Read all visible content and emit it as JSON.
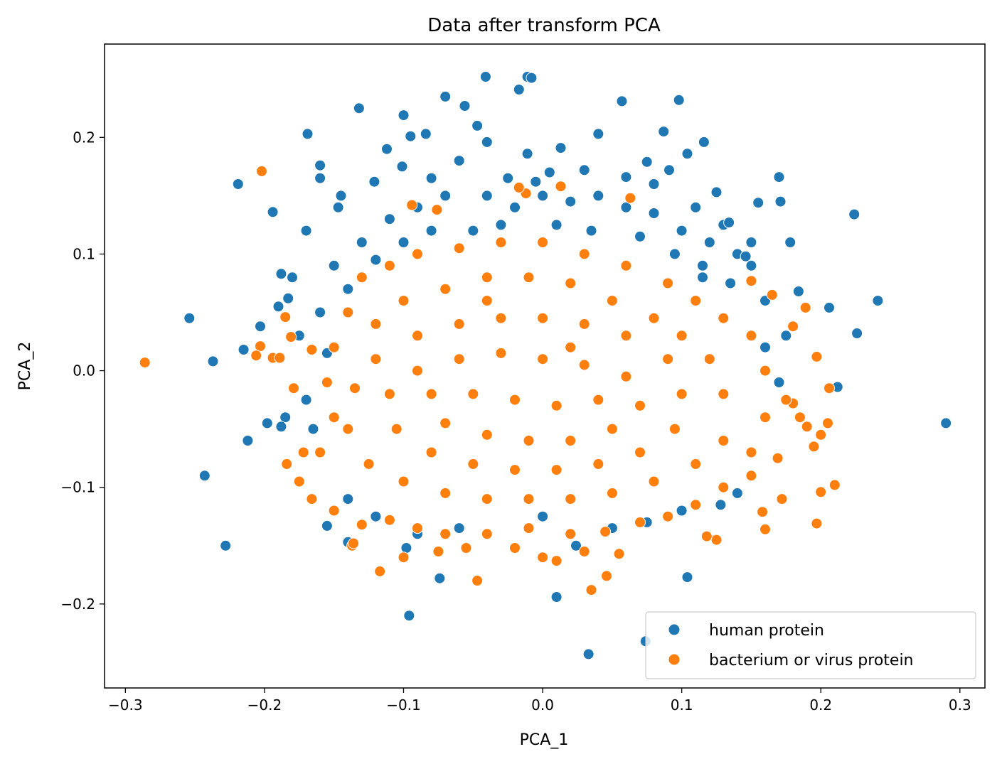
{
  "chart_data": {
    "type": "scatter",
    "title": "Data after transform PCA",
    "xlabel": "PCA_1",
    "ylabel": "PCA_2",
    "xlim": [
      -0.315,
      0.318
    ],
    "ylim": [
      -0.272,
      0.28
    ],
    "xticks": [
      -0.3,
      -0.2,
      -0.1,
      0.0,
      0.1,
      0.2,
      0.3
    ],
    "yticks": [
      -0.2,
      -0.1,
      0.0,
      0.1,
      0.2
    ],
    "xtick_labels": [
      "−0.3",
      "−0.2",
      "−0.1",
      "0.0",
      "0.1",
      "0.2",
      "0.3"
    ],
    "ytick_labels": [
      "−0.2",
      "−0.1",
      "0.0",
      "0.1",
      "0.2"
    ],
    "grid": false,
    "legend_position": "bottom-right",
    "series": [
      {
        "name": "human protein",
        "color": "#1f77b4",
        "note_points": "representative sample of the dense cloud plus visible outliers",
        "points": [
          [
            -0.041,
            0.252
          ],
          [
            -0.011,
            0.252
          ],
          [
            -0.008,
            0.251
          ],
          [
            -0.017,
            0.241
          ],
          [
            -0.07,
            0.235
          ],
          [
            0.098,
            0.232
          ],
          [
            0.057,
            0.231
          ],
          [
            -0.056,
            0.227
          ],
          [
            -0.132,
            0.225
          ],
          [
            -0.1,
            0.219
          ],
          [
            -0.047,
            0.21
          ],
          [
            0.087,
            0.205
          ],
          [
            -0.095,
            0.201
          ],
          [
            -0.084,
            0.203
          ],
          [
            -0.169,
            0.203
          ],
          [
            0.04,
            0.203
          ],
          [
            0.116,
            0.196
          ],
          [
            -0.04,
            0.196
          ],
          [
            0.104,
            0.186
          ],
          [
            -0.011,
            0.186
          ],
          [
            0.013,
            0.191
          ],
          [
            -0.112,
            0.19
          ],
          [
            -0.219,
            0.16
          ],
          [
            -0.194,
            0.136
          ],
          [
            0.224,
            0.134
          ],
          [
            0.241,
            0.06
          ],
          [
            0.226,
            0.032
          ],
          [
            -0.254,
            0.045
          ],
          [
            -0.237,
            0.008
          ],
          [
            0.29,
            -0.045
          ],
          [
            -0.243,
            -0.09
          ],
          [
            -0.228,
            -0.15
          ],
          [
            -0.096,
            -0.21
          ],
          [
            0.104,
            -0.177
          ],
          [
            0.01,
            -0.194
          ],
          [
            -0.074,
            -0.178
          ],
          [
            0.033,
            -0.243
          ],
          [
            0.074,
            -0.232
          ],
          [
            0.212,
            -0.014
          ],
          [
            0.178,
            0.11
          ],
          [
            -0.212,
            -0.06
          ],
          [
            -0.203,
            0.038
          ],
          [
            -0.155,
            -0.133
          ],
          [
            -0.14,
            -0.147
          ],
          [
            -0.098,
            -0.152
          ],
          [
            0.024,
            -0.15
          ],
          [
            0.128,
            -0.115
          ],
          [
            0.14,
            -0.105
          ],
          [
            0.17,
            0.166
          ],
          [
            0.155,
            0.144
          ],
          [
            -0.16,
            0.176
          ],
          [
            -0.147,
            0.14
          ],
          [
            -0.121,
            0.162
          ],
          [
            -0.06,
            0.18
          ],
          [
            0.005,
            0.17
          ],
          [
            0.03,
            0.172
          ],
          [
            0.06,
            0.166
          ],
          [
            0.08,
            0.16
          ],
          [
            0.11,
            0.14
          ],
          [
            0.13,
            0.125
          ],
          [
            -0.17,
            0.12
          ],
          [
            -0.18,
            0.08
          ],
          [
            -0.19,
            0.055
          ],
          [
            -0.175,
            0.03
          ],
          [
            -0.185,
            -0.04
          ],
          [
            -0.17,
            -0.025
          ],
          [
            0.15,
            0.09
          ],
          [
            0.16,
            0.06
          ],
          [
            0.175,
            0.03
          ],
          [
            0.15,
            0.11
          ],
          [
            -0.13,
            0.11
          ],
          [
            -0.11,
            0.13
          ],
          [
            -0.09,
            0.14
          ],
          [
            -0.07,
            0.15
          ],
          [
            -0.04,
            0.15
          ],
          [
            -0.02,
            0.14
          ],
          [
            0.0,
            0.15
          ],
          [
            0.02,
            0.145
          ],
          [
            0.04,
            0.15
          ],
          [
            0.06,
            0.14
          ],
          [
            0.08,
            0.135
          ],
          [
            0.1,
            0.12
          ],
          [
            0.12,
            0.11
          ],
          [
            0.14,
            0.1
          ],
          [
            -0.15,
            0.09
          ],
          [
            -0.14,
            0.07
          ],
          [
            -0.12,
            0.095
          ],
          [
            -0.1,
            0.11
          ],
          [
            -0.08,
            0.12
          ],
          [
            -0.05,
            0.12
          ],
          [
            -0.03,
            0.125
          ],
          [
            0.01,
            0.125
          ],
          [
            0.035,
            0.12
          ],
          [
            0.07,
            0.115
          ],
          [
            0.095,
            0.1
          ],
          [
            0.115,
            0.09
          ],
          [
            0.135,
            0.075
          ],
          [
            -0.16,
            0.05
          ],
          [
            -0.155,
            0.015
          ],
          [
            -0.165,
            -0.05
          ],
          [
            0.16,
            0.02
          ],
          [
            0.17,
            -0.01
          ],
          [
            -0.14,
            -0.11
          ],
          [
            -0.09,
            -0.14
          ],
          [
            0.0,
            -0.125
          ],
          [
            0.05,
            -0.135
          ],
          [
            0.1,
            -0.12
          ],
          [
            -0.12,
            -0.125
          ],
          [
            0.075,
            -0.13
          ],
          [
            -0.06,
            -0.135
          ],
          [
            -0.188,
            0.083
          ],
          [
            -0.183,
            0.062
          ],
          [
            -0.198,
            -0.045
          ],
          [
            -0.188,
            -0.048
          ],
          [
            -0.145,
            0.15
          ],
          [
            -0.101,
            0.175
          ],
          [
            0.075,
            0.179
          ],
          [
            0.091,
            0.172
          ],
          [
            0.125,
            0.153
          ],
          [
            0.134,
            0.127
          ],
          [
            -0.16,
            0.165
          ],
          [
            0.171,
            0.145
          ],
          [
            0.206,
            0.054
          ],
          [
            0.184,
            0.068
          ],
          [
            -0.215,
            0.018
          ],
          [
            0.146,
            0.098
          ],
          [
            0.115,
            0.08
          ],
          [
            -0.005,
            0.162
          ],
          [
            -0.08,
            0.165
          ],
          [
            -0.025,
            0.165
          ]
        ]
      },
      {
        "name": "bacterium or virus protein",
        "color": "#ff7f0e",
        "note_points": "representative sample of the dense cloud plus visible outliers",
        "points": [
          [
            -0.286,
            0.007
          ],
          [
            -0.202,
            0.171
          ],
          [
            -0.094,
            0.142
          ],
          [
            -0.076,
            0.138
          ],
          [
            -0.012,
            0.152
          ],
          [
            0.013,
            0.158
          ],
          [
            -0.017,
            0.157
          ],
          [
            0.063,
            0.148
          ],
          [
            -0.185,
            0.046
          ],
          [
            -0.203,
            0.021
          ],
          [
            -0.206,
            0.013
          ],
          [
            -0.194,
            0.011
          ],
          [
            -0.189,
            0.011
          ],
          [
            -0.181,
            0.029
          ],
          [
            -0.166,
            0.018
          ],
          [
            -0.179,
            -0.015
          ],
          [
            -0.184,
            -0.08
          ],
          [
            -0.172,
            -0.07
          ],
          [
            -0.175,
            -0.095
          ],
          [
            -0.166,
            -0.11
          ],
          [
            -0.137,
            -0.15
          ],
          [
            -0.117,
            -0.172
          ],
          [
            -0.047,
            -0.18
          ],
          [
            0.035,
            -0.188
          ],
          [
            0.046,
            -0.176
          ],
          [
            0.189,
            0.054
          ],
          [
            0.197,
            0.012
          ],
          [
            0.18,
            0.038
          ],
          [
            0.165,
            0.065
          ],
          [
            0.15,
            0.077
          ],
          [
            0.206,
            -0.015
          ],
          [
            0.205,
            -0.045
          ],
          [
            0.2,
            -0.055
          ],
          [
            0.195,
            -0.065
          ],
          [
            0.21,
            -0.098
          ],
          [
            0.2,
            -0.104
          ],
          [
            0.197,
            -0.131
          ],
          [
            0.158,
            -0.121
          ],
          [
            0.16,
            -0.136
          ],
          [
            0.172,
            -0.11
          ],
          [
            0.125,
            -0.145
          ],
          [
            0.118,
            -0.142
          ],
          [
            0.185,
            -0.04
          ],
          [
            0.18,
            -0.028
          ],
          [
            0.175,
            -0.025
          ],
          [
            0.169,
            -0.075
          ],
          [
            0.19,
            -0.048
          ],
          [
            -0.136,
            -0.148
          ],
          [
            -0.1,
            -0.16
          ],
          [
            -0.075,
            -0.155
          ],
          [
            -0.055,
            -0.152
          ],
          [
            -0.02,
            -0.152
          ],
          [
            0.0,
            -0.16
          ],
          [
            0.01,
            -0.163
          ],
          [
            0.03,
            -0.155
          ],
          [
            0.055,
            -0.157
          ],
          [
            -0.15,
            -0.12
          ],
          [
            -0.13,
            -0.132
          ],
          [
            -0.11,
            -0.128
          ],
          [
            -0.09,
            -0.135
          ],
          [
            -0.07,
            -0.14
          ],
          [
            -0.04,
            -0.14
          ],
          [
            -0.01,
            -0.135
          ],
          [
            0.02,
            -0.14
          ],
          [
            0.045,
            -0.138
          ],
          [
            0.07,
            -0.13
          ],
          [
            0.09,
            -0.125
          ],
          [
            0.11,
            -0.115
          ],
          [
            0.13,
            -0.1
          ],
          [
            0.15,
            -0.09
          ],
          [
            -0.16,
            -0.07
          ],
          [
            -0.15,
            -0.04
          ],
          [
            -0.155,
            -0.01
          ],
          [
            -0.15,
            0.02
          ],
          [
            -0.14,
            0.05
          ],
          [
            -0.13,
            0.08
          ],
          [
            -0.11,
            0.09
          ],
          [
            -0.09,
            0.1
          ],
          [
            -0.06,
            0.105
          ],
          [
            -0.03,
            0.11
          ],
          [
            0.0,
            0.11
          ],
          [
            0.03,
            0.1
          ],
          [
            0.06,
            0.09
          ],
          [
            0.09,
            0.075
          ],
          [
            0.11,
            0.06
          ],
          [
            0.13,
            0.045
          ],
          [
            0.15,
            0.03
          ],
          [
            0.16,
            0.0
          ],
          [
            0.16,
            -0.04
          ],
          [
            0.15,
            -0.07
          ],
          [
            -0.12,
            0.04
          ],
          [
            -0.1,
            0.06
          ],
          [
            -0.07,
            0.07
          ],
          [
            -0.04,
            0.08
          ],
          [
            -0.01,
            0.08
          ],
          [
            0.02,
            0.075
          ],
          [
            0.05,
            0.06
          ],
          [
            0.08,
            0.045
          ],
          [
            0.1,
            0.03
          ],
          [
            0.12,
            0.01
          ],
          [
            0.13,
            -0.02
          ],
          [
            0.13,
            -0.06
          ],
          [
            0.11,
            -0.08
          ],
          [
            0.08,
            -0.095
          ],
          [
            0.05,
            -0.105
          ],
          [
            0.02,
            -0.11
          ],
          [
            -0.01,
            -0.11
          ],
          [
            -0.04,
            -0.11
          ],
          [
            -0.07,
            -0.105
          ],
          [
            -0.1,
            -0.095
          ],
          [
            -0.125,
            -0.08
          ],
          [
            -0.14,
            -0.05
          ],
          [
            -0.135,
            -0.015
          ],
          [
            -0.12,
            0.01
          ],
          [
            -0.09,
            0.03
          ],
          [
            -0.06,
            0.04
          ],
          [
            -0.03,
            0.045
          ],
          [
            0.0,
            0.045
          ],
          [
            0.03,
            0.04
          ],
          [
            0.06,
            0.03
          ],
          [
            0.09,
            0.01
          ],
          [
            0.1,
            -0.02
          ],
          [
            0.095,
            -0.05
          ],
          [
            0.07,
            -0.07
          ],
          [
            0.04,
            -0.08
          ],
          [
            0.01,
            -0.085
          ],
          [
            -0.02,
            -0.085
          ],
          [
            -0.05,
            -0.08
          ],
          [
            -0.08,
            -0.07
          ],
          [
            -0.105,
            -0.05
          ],
          [
            -0.11,
            -0.02
          ],
          [
            -0.09,
            0.0
          ],
          [
            -0.06,
            0.01
          ],
          [
            -0.03,
            0.015
          ],
          [
            0.0,
            0.01
          ],
          [
            0.03,
            0.005
          ],
          [
            0.06,
            -0.005
          ],
          [
            0.07,
            -0.03
          ],
          [
            0.05,
            -0.05
          ],
          [
            0.02,
            -0.06
          ],
          [
            -0.01,
            -0.06
          ],
          [
            -0.04,
            -0.055
          ],
          [
            -0.07,
            -0.045
          ],
          [
            -0.08,
            -0.02
          ],
          [
            -0.05,
            -0.02
          ],
          [
            -0.02,
            -0.025
          ],
          [
            0.01,
            -0.03
          ],
          [
            0.04,
            -0.025
          ],
          [
            0.02,
            0.02
          ],
          [
            -0.04,
            0.06
          ]
        ]
      }
    ]
  }
}
